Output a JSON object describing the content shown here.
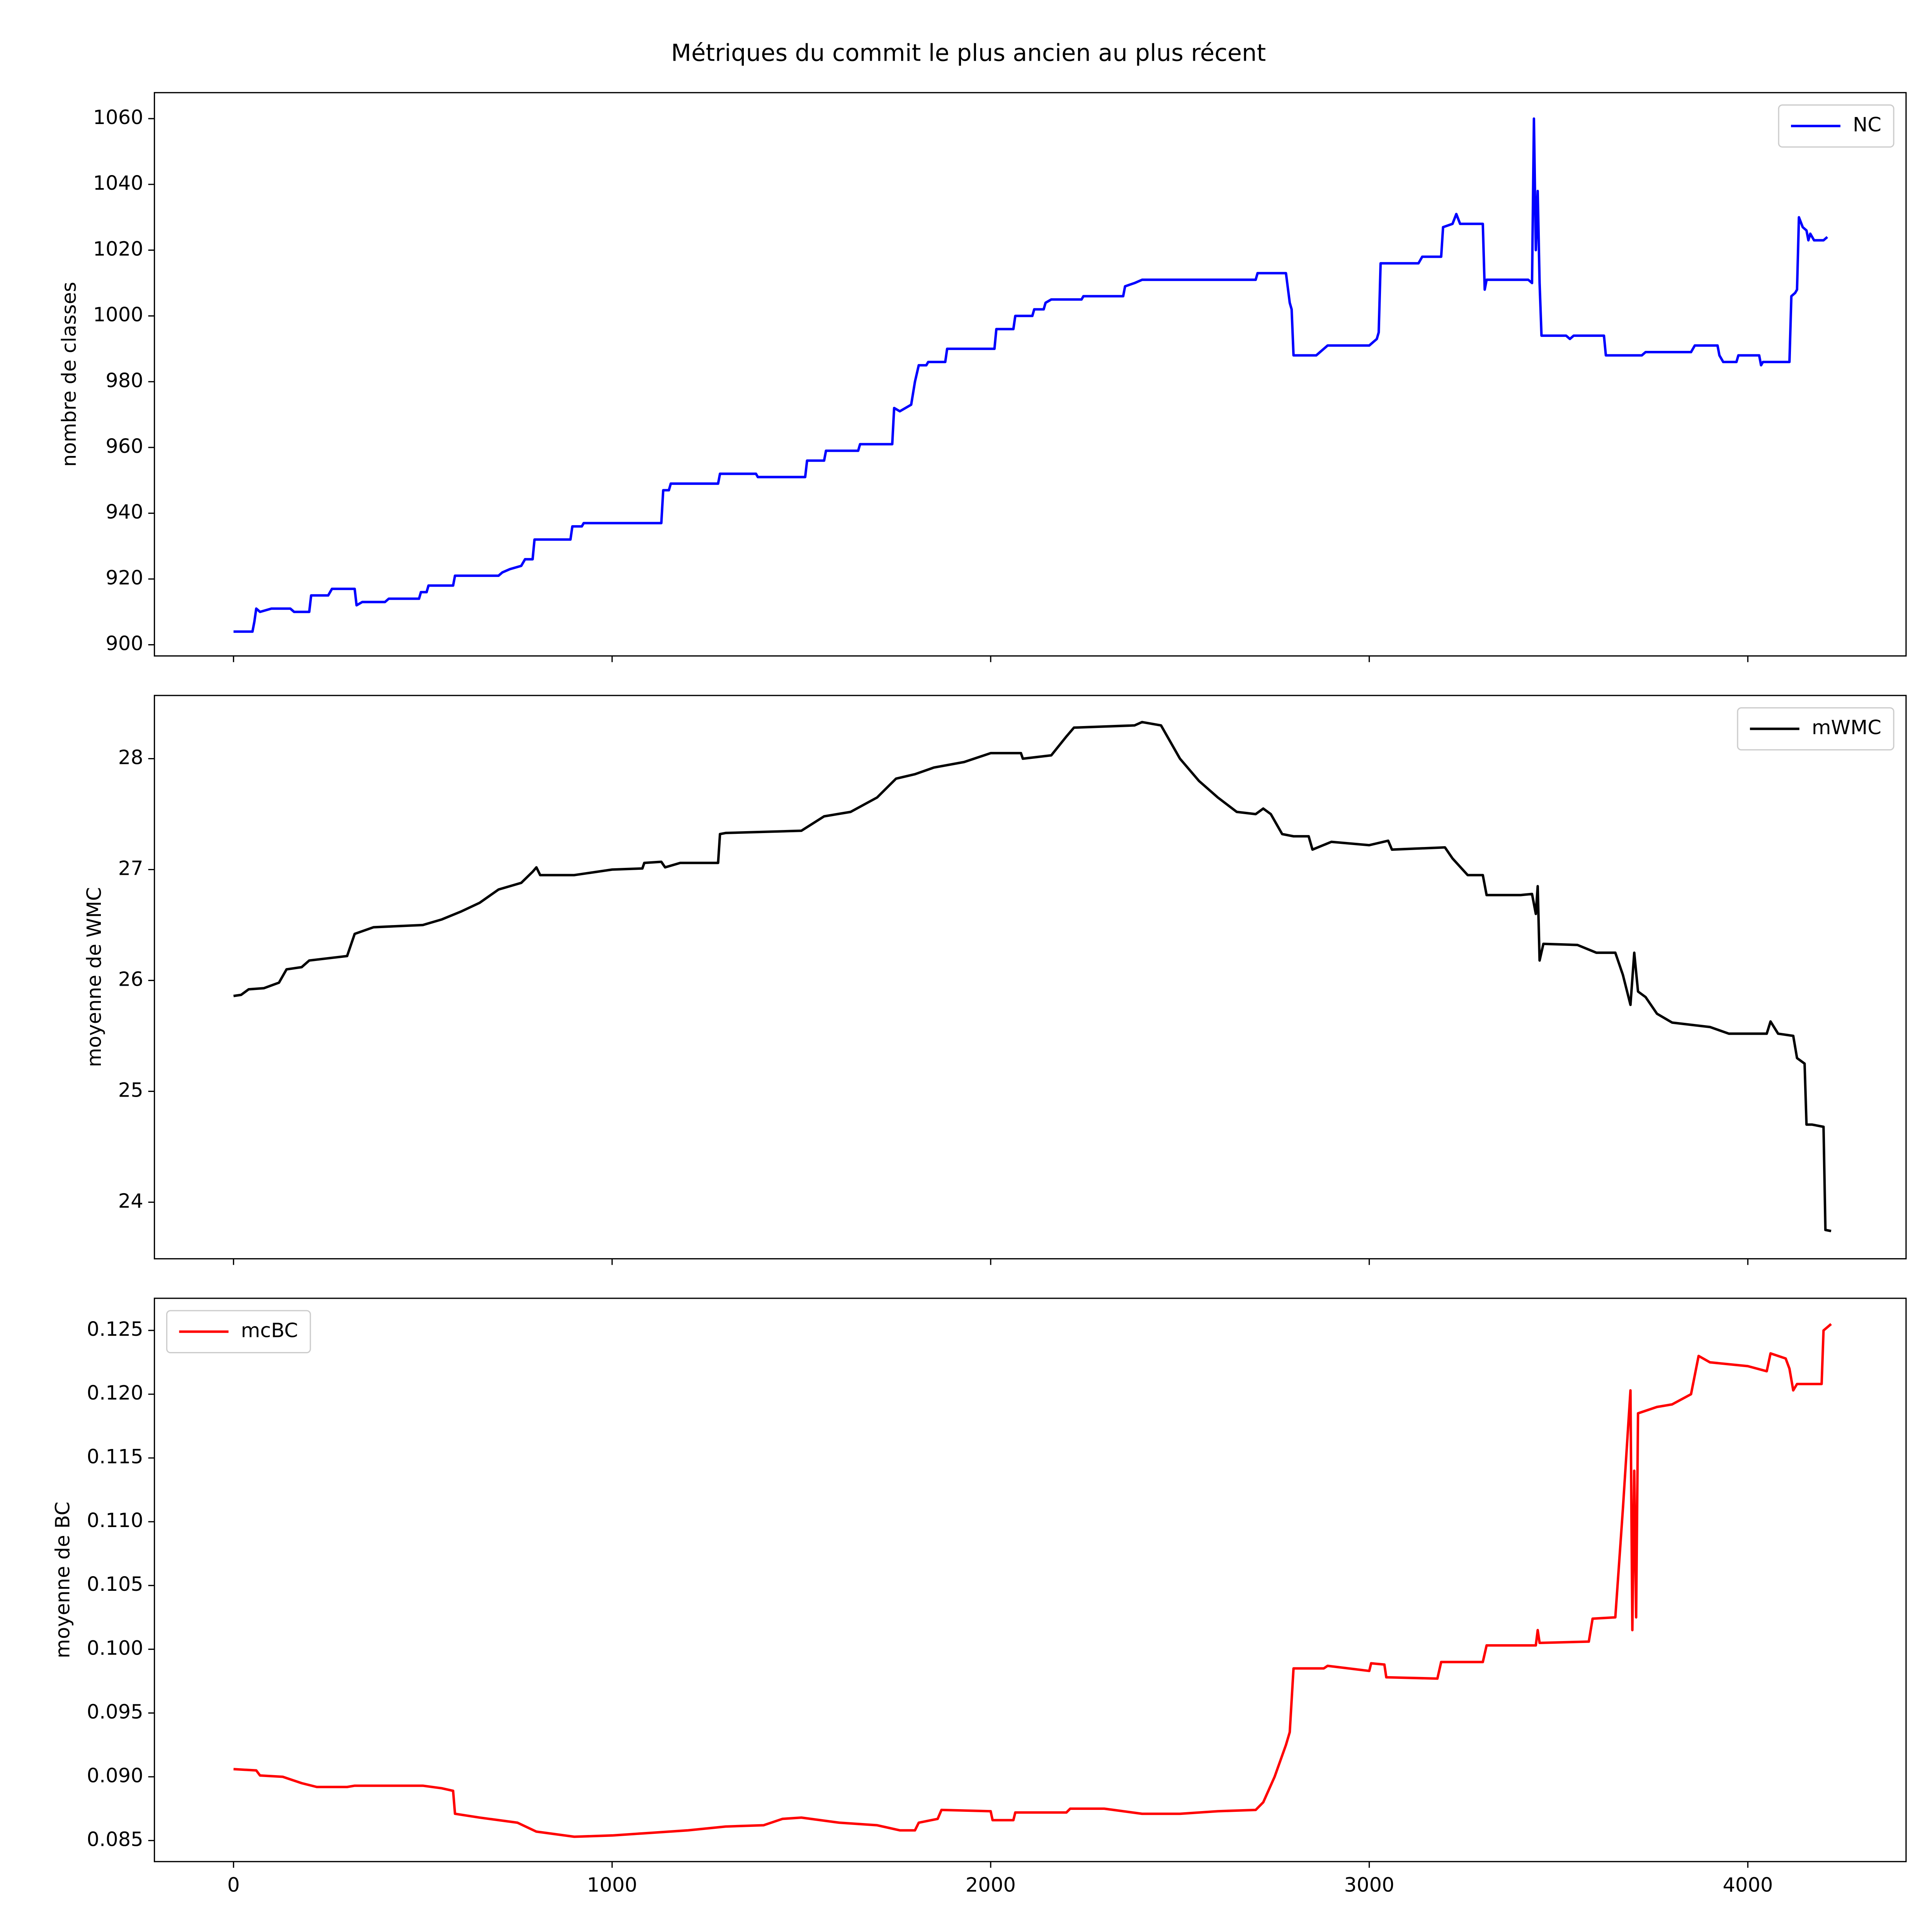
{
  "title": "Métriques du commit le plus ancien au plus récent",
  "chart_data": [
    {
      "type": "line",
      "ylabel": "nombre de classes",
      "legend": "upper right",
      "xlim": [
        -209,
        4418
      ],
      "ylim": [
        896.6,
        1067.9
      ],
      "yticks": [
        900,
        920,
        940,
        960,
        980,
        1000,
        1020,
        1040,
        1060
      ],
      "x": [
        0,
        50,
        55,
        60,
        70,
        100,
        150,
        160,
        200,
        205,
        250,
        260,
        320,
        325,
        340,
        400,
        410,
        490,
        495,
        510,
        515,
        580,
        585,
        700,
        710,
        730,
        760,
        770,
        790,
        795,
        890,
        895,
        920,
        925,
        1130,
        1135,
        1150,
        1155,
        1280,
        1285,
        1380,
        1385,
        1510,
        1515,
        1560,
        1565,
        1650,
        1655,
        1740,
        1745,
        1760,
        1790,
        1800,
        1810,
        1830,
        1835,
        1880,
        1885,
        2010,
        2015,
        2060,
        2065,
        2110,
        2115,
        2140,
        2145,
        2160,
        2240,
        2245,
        2350,
        2355,
        2380,
        2400,
        2700,
        2705,
        2780,
        2790,
        2795,
        2800,
        2860,
        2870,
        2880,
        2890,
        3000,
        3010,
        3020,
        3025,
        3030,
        3130,
        3140,
        3190,
        3195,
        3220,
        3230,
        3240,
        3300,
        3305,
        3310,
        3420,
        3430,
        3435,
        3440,
        3445,
        3450,
        3455,
        3520,
        3530,
        3540,
        3620,
        3625,
        3720,
        3730,
        3850,
        3860,
        3920,
        3925,
        3935,
        3970,
        3975,
        4030,
        4035,
        4040,
        4110,
        4115,
        4125,
        4130,
        4135,
        4145,
        4155,
        4160,
        4165,
        4175,
        4200,
        4210
      ],
      "series": [
        {
          "name": "NC",
          "color": "#0000ff",
          "values": [
            904,
            904,
            907,
            911,
            910,
            911,
            911,
            910,
            910,
            915,
            915,
            917,
            917,
            912,
            913,
            913,
            914,
            914,
            916,
            916,
            918,
            918,
            921,
            921,
            922,
            923,
            924,
            926,
            926,
            932,
            932,
            936,
            936,
            937,
            937,
            947,
            947,
            949,
            949,
            952,
            952,
            951,
            951,
            956,
            956,
            959,
            959,
            961,
            961,
            972,
            971,
            973,
            980,
            985,
            985,
            986,
            986,
            990,
            990,
            996,
            996,
            1000,
            1000,
            1002,
            1002,
            1004,
            1005,
            1005,
            1006,
            1006,
            1009,
            1010,
            1011,
            1011,
            1013,
            1013,
            1004,
            1002,
            988,
            988,
            989,
            990,
            991,
            991,
            992,
            993,
            995,
            1016,
            1016,
            1018,
            1018,
            1027,
            1028,
            1031,
            1028,
            1028,
            1008,
            1011,
            1011,
            1010,
            1060,
            1020,
            1038,
            1010,
            994,
            994,
            993,
            994,
            994,
            988,
            988,
            989,
            989,
            991,
            991,
            988,
            986,
            986,
            988,
            988,
            985,
            986,
            986,
            1006,
            1007,
            1008,
            1030,
            1027,
            1026,
            1023,
            1025,
            1023,
            1023,
            1024
          ]
        }
      ]
    },
    {
      "type": "line",
      "ylabel": "moyenne de WMC",
      "legend": "upper right",
      "xlim": [
        -209,
        4418
      ],
      "ylim": [
        23.49,
        28.57
      ],
      "yticks": [
        24,
        25,
        26,
        27,
        28
      ],
      "x": [
        0,
        20,
        40,
        80,
        120,
        140,
        180,
        200,
        300,
        320,
        370,
        500,
        550,
        600,
        650,
        700,
        760,
        790,
        800,
        810,
        900,
        1000,
        1080,
        1085,
        1130,
        1140,
        1180,
        1280,
        1285,
        1300,
        1500,
        1560,
        1630,
        1700,
        1750,
        1800,
        1850,
        1930,
        2000,
        2080,
        2085,
        2160,
        2200,
        2220,
        2380,
        2400,
        2450,
        2500,
        2550,
        2600,
        2650,
        2700,
        2720,
        2740,
        2770,
        2800,
        2840,
        2850,
        2900,
        3000,
        3050,
        3060,
        3200,
        3220,
        3260,
        3300,
        3310,
        3400,
        3430,
        3440,
        3445,
        3450,
        3460,
        3550,
        3600,
        3650,
        3670,
        3690,
        3700,
        3710,
        3730,
        3760,
        3800,
        3900,
        3950,
        4050,
        4060,
        4080,
        4120,
        4130,
        4150,
        4155,
        4170,
        4200,
        4205,
        4220
      ],
      "series": [
        {
          "name": "mWMC",
          "color": "#000000",
          "values": [
            25.86,
            25.87,
            25.92,
            25.93,
            25.98,
            26.1,
            26.12,
            26.18,
            26.22,
            26.42,
            26.48,
            26.5,
            26.55,
            26.62,
            26.7,
            26.82,
            26.88,
            26.98,
            27.02,
            26.95,
            26.95,
            27.0,
            27.01,
            27.06,
            27.07,
            27.02,
            27.06,
            27.06,
            27.32,
            27.33,
            27.35,
            27.48,
            27.52,
            27.65,
            27.82,
            27.86,
            27.92,
            27.97,
            28.05,
            28.05,
            28.0,
            28.03,
            28.2,
            28.28,
            28.3,
            28.33,
            28.3,
            28.0,
            27.8,
            27.65,
            27.52,
            27.5,
            27.55,
            27.5,
            27.32,
            27.3,
            27.3,
            27.18,
            27.25,
            27.22,
            27.26,
            27.18,
            27.2,
            27.1,
            26.95,
            26.95,
            26.77,
            26.77,
            26.78,
            26.6,
            26.85,
            26.18,
            26.33,
            26.32,
            26.25,
            26.25,
            26.05,
            25.78,
            26.25,
            25.9,
            25.85,
            25.7,
            25.62,
            25.58,
            25.52,
            25.52,
            25.63,
            25.52,
            25.5,
            25.3,
            25.25,
            24.7,
            24.7,
            24.68,
            23.75,
            23.74
          ]
        }
      ]
    },
    {
      "type": "line",
      "ylabel": "moyenne de BC",
      "legend": "upper left",
      "xlim": [
        -209,
        4418
      ],
      "ylim": [
        0.08335,
        0.12752
      ],
      "xticks": [
        0,
        1000,
        2000,
        3000,
        4000
      ],
      "yticks": [
        0.085,
        {
          "value": 0.09,
          "label": "0.090"
        },
        0.095,
        {
          "value": 0.1,
          "label": "0.100"
        },
        0.105,
        {
          "value": 0.11,
          "label": "0.110"
        },
        0.115,
        {
          "value": 0.12,
          "label": "0.120"
        },
        0.125
      ],
      "x": [
        0,
        60,
        70,
        130,
        180,
        220,
        300,
        320,
        500,
        550,
        580,
        585,
        650,
        750,
        800,
        900,
        1000,
        1100,
        1200,
        1300,
        1400,
        1450,
        1500,
        1600,
        1700,
        1760,
        1800,
        1810,
        1860,
        1870,
        2000,
        2005,
        2060,
        2065,
        2200,
        2210,
        2300,
        2400,
        2500,
        2600,
        2700,
        2720,
        2750,
        2780,
        2790,
        2800,
        2880,
        2890,
        3000,
        3005,
        3040,
        3045,
        3180,
        3190,
        3300,
        3310,
        3440,
        3445,
        3450,
        3580,
        3590,
        3650,
        3670,
        3690,
        3695,
        3700,
        3705,
        3710,
        3760,
        3800,
        3850,
        3870,
        3900,
        4000,
        4050,
        4060,
        4100,
        4110,
        4120,
        4130,
        4195,
        4200,
        4220
      ],
      "series": [
        {
          "name": "mcBC",
          "color": "#ff0000",
          "values": [
            0.0906,
            0.0905,
            0.0901,
            0.09,
            0.0895,
            0.0892,
            0.0892,
            0.0893,
            0.0893,
            0.0891,
            0.0889,
            0.0871,
            0.0868,
            0.0864,
            0.0857,
            0.0853,
            0.0854,
            0.0856,
            0.0858,
            0.0861,
            0.0862,
            0.0867,
            0.0868,
            0.0864,
            0.0862,
            0.0858,
            0.0858,
            0.0864,
            0.0867,
            0.0874,
            0.0873,
            0.0866,
            0.0866,
            0.0872,
            0.0872,
            0.0875,
            0.0875,
            0.0871,
            0.0871,
            0.0873,
            0.0874,
            0.088,
            0.09,
            0.0925,
            0.0935,
            0.0985,
            0.0985,
            0.0987,
            0.0983,
            0.0989,
            0.0988,
            0.0978,
            0.0977,
            0.099,
            0.099,
            0.1003,
            0.1003,
            0.1015,
            0.1005,
            0.1006,
            0.1024,
            0.1025,
            0.111,
            0.1203,
            0.1015,
            0.114,
            0.1025,
            0.1185,
            0.119,
            0.1192,
            0.12,
            0.123,
            0.1225,
            0.1222,
            0.1218,
            0.1232,
            0.1228,
            0.122,
            0.1203,
            0.1208,
            0.1208,
            0.125,
            0.1255
          ]
        }
      ]
    }
  ]
}
